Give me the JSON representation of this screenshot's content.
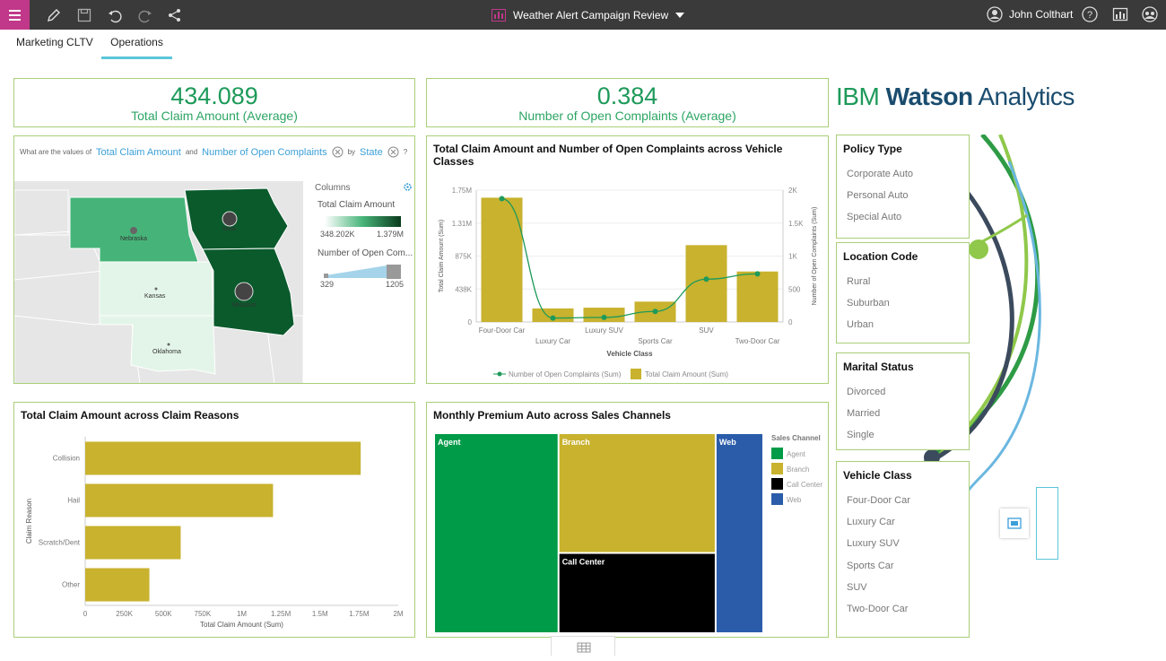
{
  "topbar": {
    "title": "Weather Alert Campaign Review",
    "user": "John Colthart"
  },
  "tabs": [
    {
      "label": "Marketing CLTV"
    },
    {
      "label": "Operations"
    }
  ],
  "kpis": [
    {
      "value": "434.089",
      "label": "Total Claim Amount (Average)"
    },
    {
      "value": "0.384",
      "label": "Number of Open Complaints (Average)"
    }
  ],
  "brand": {
    "prefix": "IBM ",
    "name": "Watson",
    "suffix": " Analytics"
  },
  "map_panel": {
    "question_prefix": "What are the values of",
    "measure1": "Total Claim Amount",
    "and_word": "and",
    "measure2": "Number of Open Complaints",
    "by_word": "by",
    "dimension": "State",
    "help": "?",
    "columns_label": "Columns",
    "legend1_title": "Total Claim Amount",
    "legend1_min": "348.202K",
    "legend1_max": "1.379M",
    "legend2_title": "Number of Open Com...",
    "legend2_min": "329",
    "legend2_max": "1205",
    "states": [
      "Nebraska",
      "Iowa",
      "Kansas",
      "Missouri",
      "Oklahoma"
    ]
  },
  "chart_data": [
    {
      "type": "bar",
      "title": "Total Claim Amount and Number of Open Complaints across Vehicle Classes",
      "xlabel": "Vehicle Class",
      "ylabel": "Total Claim Amount (Sum)",
      "y2label": "Number of Open Complaints (Sum)",
      "categories": [
        "Four-Door Car",
        "Luxury Car",
        "Luxury SUV",
        "Sports Car",
        "SUV",
        "Two-Door Car"
      ],
      "series": [
        {
          "name": "Total Claim Amount (Sum)",
          "type": "bar",
          "color": "#c8b22e",
          "values": [
            1650000,
            180000,
            190000,
            270000,
            1020000,
            670000
          ]
        },
        {
          "name": "Number of Open Complaints (Sum)",
          "type": "line",
          "axis": "right",
          "color": "#1e9a5a",
          "values": [
            1870,
            60,
            70,
            160,
            650,
            730
          ]
        }
      ],
      "yticks": [
        "0",
        "438K",
        "875K",
        "1.31M",
        "1.75M"
      ],
      "ylim": [
        0,
        1750000
      ],
      "y2ticks": [
        "0",
        "500",
        "1K",
        "1.5K",
        "2K"
      ],
      "y2lim": [
        0,
        2000
      ],
      "legend": "bottom"
    },
    {
      "type": "bar",
      "orientation": "horizontal",
      "title": "Total Claim Amount across Claim Reasons",
      "xlabel": "Total Claim Amount (Sum)",
      "ylabel": "Claim Reason",
      "categories": [
        "Collision",
        "Hail",
        "Scratch/Dent",
        "Other"
      ],
      "values": [
        1760000,
        1200000,
        610000,
        410000
      ],
      "xticks": [
        "0",
        "250K",
        "500K",
        "750K",
        "1M",
        "1.25M",
        "1.5M",
        "1.75M",
        "2M"
      ],
      "xlim": [
        0,
        2000000
      ],
      "color": "#c8b22e"
    },
    {
      "type": "treemap",
      "title": "Monthly Premium Auto across Sales Channels",
      "legend_title": "Sales Channel",
      "categories": [
        "Agent",
        "Branch",
        "Call Center",
        "Web"
      ],
      "colors": [
        "#009b48",
        "#c8b22e",
        "#000000",
        "#2a5caa"
      ],
      "values": [
        38,
        29,
        19,
        14
      ]
    }
  ],
  "filters": [
    {
      "title": "Policy Type",
      "items": [
        "Corporate Auto",
        "Personal Auto",
        "Special Auto"
      ]
    },
    {
      "title": "Location Code",
      "items": [
        "Rural",
        "Suburban",
        "Urban"
      ]
    },
    {
      "title": "Marital Status",
      "items": [
        "Divorced",
        "Married",
        "Single"
      ]
    },
    {
      "title": "Vehicle Class",
      "items": [
        "Four-Door Car",
        "Luxury Car",
        "Luxury SUV",
        "Sports Car",
        "SUV",
        "Two-Door Car"
      ]
    }
  ],
  "colors": {
    "accent": "#c1388a",
    "panel_border": "#a9cf78",
    "kpi_green": "#1e9a5a",
    "tab_underline": "#5bc6d9",
    "link_blue": "#3b9fd8"
  }
}
